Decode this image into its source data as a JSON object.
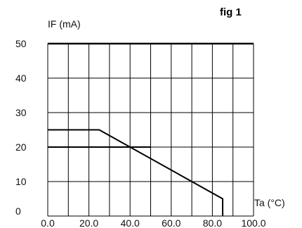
{
  "figure": {
    "label": "fig 1"
  },
  "chart_data": {
    "type": "line",
    "xlabel": "Ta (°C)",
    "ylabel": "IF (mA)",
    "xlim": [
      0,
      100
    ],
    "ylim": [
      0,
      50
    ],
    "x_ticks": [
      0,
      20,
      40,
      60,
      80,
      100
    ],
    "x_tick_labels": [
      "0.0",
      "20.0",
      "40.0",
      "60.0",
      "80.0",
      "100.0"
    ],
    "y_ticks": [
      0,
      10,
      20,
      30,
      40,
      50
    ],
    "y_tick_labels": [
      "0",
      "10",
      "20",
      "30",
      "40",
      "50"
    ],
    "grid": {
      "x_step": 10,
      "y_step": 10
    },
    "series": [
      {
        "x": [
          0,
          25,
          85,
          85
        ],
        "y": [
          25,
          25,
          5,
          0
        ]
      },
      {
        "x": [
          0,
          50
        ],
        "y": [
          20,
          20
        ]
      }
    ],
    "colors": {
      "line": "#000000",
      "grid": "#000000",
      "background": "#ffffff"
    }
  }
}
